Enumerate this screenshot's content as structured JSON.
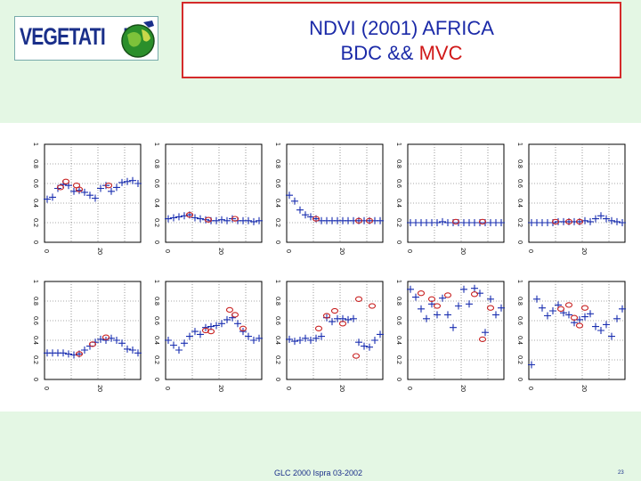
{
  "header": {
    "logo_text": "VEGETATI",
    "logo_text_end": "N",
    "title_line1": "NDVI (2001) AFRICA",
    "title_line2_prefix": "BDC &&",
    "title_line2_accent": "MVC",
    "colors": {
      "title": "#1b2aa8",
      "accent": "#d01818",
      "border": "#d42a2a"
    }
  },
  "footer": {
    "text": "GLC 2000 Ispra 03-2002",
    "page_number": "23"
  },
  "chart_data": {
    "type": "scatter",
    "layout": "2 rows x 5 columns",
    "xlim": [
      0,
      36
    ],
    "ylim": [
      0,
      1
    ],
    "yticks": [
      "0",
      "0.2",
      "0.4",
      "0.6",
      "0.8",
      "1"
    ],
    "xticks": [
      "0",
      "20"
    ],
    "series_style": {
      "BDC": {
        "marker": "plus",
        "color": "#1a2fb0"
      },
      "MVC": {
        "marker": "circle",
        "color": "#c82020"
      }
    },
    "panels": [
      {
        "BDC": [
          [
            1,
            0.44
          ],
          [
            3,
            0.46
          ],
          [
            5,
            0.55
          ],
          [
            7,
            0.59
          ],
          [
            9,
            0.58
          ],
          [
            11,
            0.52
          ],
          [
            13,
            0.53
          ],
          [
            15,
            0.51
          ],
          [
            17,
            0.48
          ],
          [
            19,
            0.45
          ],
          [
            21,
            0.55
          ],
          [
            23,
            0.58
          ],
          [
            25,
            0.52
          ],
          [
            27,
            0.56
          ],
          [
            29,
            0.61
          ],
          [
            31,
            0.62
          ],
          [
            33,
            0.63
          ],
          [
            35,
            0.6
          ]
        ],
        "MVC": [
          [
            6,
            0.56
          ],
          [
            8,
            0.62
          ],
          [
            12,
            0.58
          ],
          [
            13,
            0.54
          ],
          [
            24,
            0.58
          ]
        ]
      },
      {
        "BDC": [
          [
            1,
            0.24
          ],
          [
            3,
            0.25
          ],
          [
            5,
            0.26
          ],
          [
            7,
            0.27
          ],
          [
            9,
            0.28
          ],
          [
            11,
            0.25
          ],
          [
            13,
            0.24
          ],
          [
            15,
            0.23
          ],
          [
            17,
            0.22
          ],
          [
            19,
            0.22
          ],
          [
            21,
            0.23
          ],
          [
            23,
            0.22
          ],
          [
            25,
            0.24
          ],
          [
            27,
            0.22
          ],
          [
            29,
            0.22
          ],
          [
            31,
            0.22
          ],
          [
            33,
            0.21
          ],
          [
            35,
            0.22
          ]
        ],
        "MVC": [
          [
            9,
            0.28
          ],
          [
            16,
            0.23
          ],
          [
            26,
            0.24
          ]
        ]
      },
      {
        "BDC": [
          [
            1,
            0.48
          ],
          [
            3,
            0.42
          ],
          [
            5,
            0.33
          ],
          [
            7,
            0.28
          ],
          [
            9,
            0.26
          ],
          [
            11,
            0.24
          ],
          [
            13,
            0.22
          ],
          [
            15,
            0.22
          ],
          [
            17,
            0.22
          ],
          [
            19,
            0.22
          ],
          [
            21,
            0.22
          ],
          [
            23,
            0.22
          ],
          [
            25,
            0.22
          ],
          [
            27,
            0.22
          ],
          [
            29,
            0.22
          ],
          [
            31,
            0.22
          ],
          [
            33,
            0.22
          ],
          [
            35,
            0.22
          ]
        ],
        "MVC": [
          [
            11,
            0.24
          ],
          [
            27,
            0.22
          ],
          [
            31,
            0.22
          ]
        ]
      },
      {
        "BDC": [
          [
            1,
            0.2
          ],
          [
            3,
            0.2
          ],
          [
            5,
            0.2
          ],
          [
            7,
            0.2
          ],
          [
            9,
            0.2
          ],
          [
            11,
            0.2
          ],
          [
            13,
            0.21
          ],
          [
            15,
            0.2
          ],
          [
            17,
            0.2
          ],
          [
            19,
            0.2
          ],
          [
            21,
            0.2
          ],
          [
            23,
            0.2
          ],
          [
            25,
            0.2
          ],
          [
            27,
            0.2
          ],
          [
            29,
            0.2
          ],
          [
            31,
            0.2
          ],
          [
            33,
            0.2
          ],
          [
            35,
            0.2
          ]
        ],
        "MVC": [
          [
            18,
            0.21
          ],
          [
            28,
            0.21
          ]
        ]
      },
      {
        "BDC": [
          [
            1,
            0.2
          ],
          [
            3,
            0.2
          ],
          [
            5,
            0.2
          ],
          [
            7,
            0.2
          ],
          [
            9,
            0.2
          ],
          [
            11,
            0.21
          ],
          [
            13,
            0.21
          ],
          [
            15,
            0.21
          ],
          [
            17,
            0.21
          ],
          [
            19,
            0.21
          ],
          [
            21,
            0.22
          ],
          [
            23,
            0.21
          ],
          [
            25,
            0.24
          ],
          [
            27,
            0.27
          ],
          [
            29,
            0.24
          ],
          [
            31,
            0.22
          ],
          [
            33,
            0.21
          ],
          [
            35,
            0.2
          ]
        ],
        "MVC": [
          [
            10,
            0.21
          ],
          [
            15,
            0.21
          ],
          [
            19,
            0.21
          ]
        ]
      },
      {
        "BDC": [
          [
            1,
            0.27
          ],
          [
            3,
            0.27
          ],
          [
            5,
            0.27
          ],
          [
            7,
            0.27
          ],
          [
            9,
            0.26
          ],
          [
            11,
            0.25
          ],
          [
            13,
            0.26
          ],
          [
            15,
            0.3
          ],
          [
            17,
            0.34
          ],
          [
            19,
            0.38
          ],
          [
            21,
            0.41
          ],
          [
            23,
            0.4
          ],
          [
            25,
            0.42
          ],
          [
            27,
            0.4
          ],
          [
            29,
            0.37
          ],
          [
            31,
            0.31
          ],
          [
            33,
            0.3
          ],
          [
            35,
            0.27
          ]
        ],
        "MVC": [
          [
            13,
            0.26
          ],
          [
            18,
            0.36
          ],
          [
            23,
            0.43
          ]
        ]
      },
      {
        "BDC": [
          [
            1,
            0.4
          ],
          [
            3,
            0.35
          ],
          [
            5,
            0.3
          ],
          [
            7,
            0.37
          ],
          [
            9,
            0.44
          ],
          [
            11,
            0.49
          ],
          [
            13,
            0.46
          ],
          [
            15,
            0.53
          ],
          [
            17,
            0.54
          ],
          [
            19,
            0.55
          ],
          [
            21,
            0.57
          ],
          [
            23,
            0.61
          ],
          [
            25,
            0.63
          ],
          [
            27,
            0.57
          ],
          [
            29,
            0.49
          ],
          [
            31,
            0.44
          ],
          [
            33,
            0.4
          ],
          [
            35,
            0.42
          ]
        ],
        "MVC": [
          [
            15,
            0.5
          ],
          [
            17,
            0.49
          ],
          [
            24,
            0.71
          ],
          [
            26,
            0.66
          ],
          [
            29,
            0.52
          ]
        ]
      },
      {
        "BDC": [
          [
            1,
            0.41
          ],
          [
            3,
            0.39
          ],
          [
            5,
            0.4
          ],
          [
            7,
            0.42
          ],
          [
            9,
            0.4
          ],
          [
            11,
            0.42
          ],
          [
            13,
            0.44
          ],
          [
            15,
            0.63
          ],
          [
            17,
            0.59
          ],
          [
            19,
            0.62
          ],
          [
            21,
            0.62
          ],
          [
            23,
            0.61
          ],
          [
            25,
            0.62
          ],
          [
            27,
            0.38
          ],
          [
            29,
            0.34
          ],
          [
            31,
            0.33
          ],
          [
            33,
            0.4
          ],
          [
            35,
            0.46
          ]
        ],
        "MVC": [
          [
            12,
            0.52
          ],
          [
            15,
            0.65
          ],
          [
            18,
            0.7
          ],
          [
            21,
            0.57
          ],
          [
            27,
            0.82
          ],
          [
            26,
            0.24
          ],
          [
            32,
            0.75
          ]
        ]
      },
      {
        "BDC": [
          [
            1,
            0.92
          ],
          [
            3,
            0.84
          ],
          [
            5,
            0.72
          ],
          [
            7,
            0.62
          ],
          [
            9,
            0.77
          ],
          [
            11,
            0.66
          ],
          [
            13,
            0.83
          ],
          [
            15,
            0.66
          ],
          [
            17,
            0.53
          ],
          [
            19,
            0.75
          ],
          [
            21,
            0.92
          ],
          [
            23,
            0.77
          ],
          [
            25,
            0.93
          ],
          [
            27,
            0.88
          ],
          [
            29,
            0.48
          ],
          [
            31,
            0.82
          ],
          [
            33,
            0.66
          ],
          [
            35,
            0.73
          ]
        ],
        "MVC": [
          [
            5,
            0.88
          ],
          [
            9,
            0.82
          ],
          [
            11,
            0.75
          ],
          [
            15,
            0.86
          ],
          [
            25,
            0.87
          ],
          [
            28,
            0.41
          ],
          [
            31,
            0.73
          ]
        ]
      },
      {
        "BDC": [
          [
            1,
            0.15
          ],
          [
            3,
            0.82
          ],
          [
            5,
            0.73
          ],
          [
            7,
            0.65
          ],
          [
            9,
            0.7
          ],
          [
            11,
            0.76
          ],
          [
            13,
            0.68
          ],
          [
            15,
            0.66
          ],
          [
            17,
            0.58
          ],
          [
            19,
            0.61
          ],
          [
            21,
            0.64
          ],
          [
            23,
            0.67
          ],
          [
            25,
            0.54
          ],
          [
            27,
            0.5
          ],
          [
            29,
            0.56
          ],
          [
            31,
            0.44
          ],
          [
            33,
            0.62
          ],
          [
            35,
            0.72
          ]
        ],
        "MVC": [
          [
            12,
            0.72
          ],
          [
            15,
            0.76
          ],
          [
            17,
            0.63
          ],
          [
            19,
            0.55
          ],
          [
            21,
            0.73
          ]
        ]
      }
    ]
  }
}
